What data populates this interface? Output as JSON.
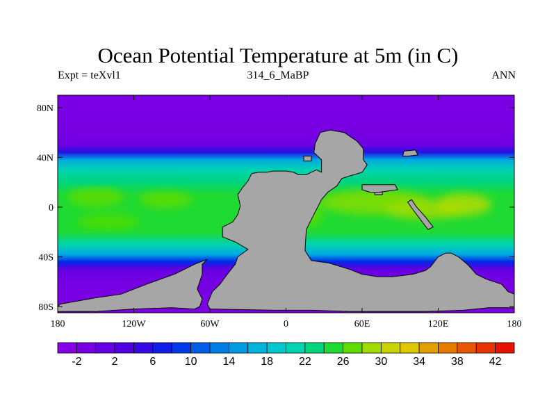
{
  "title": "Ocean Potential Temperature at 5m (in C)",
  "subtitle_left": "Expt = teXvl1",
  "subtitle_center": "314_6_MaBP",
  "subtitle_right": "ANN",
  "x_ticks": [
    {
      "lon": -180,
      "label": "180"
    },
    {
      "lon": -120,
      "label": "120W"
    },
    {
      "lon": -60,
      "label": "60W"
    },
    {
      "lon": 0,
      "label": "0"
    },
    {
      "lon": 60,
      "label": "60E"
    },
    {
      "lon": 120,
      "label": "120E"
    },
    {
      "lon": 180,
      "label": "180"
    }
  ],
  "y_ticks": [
    {
      "lat": 80,
      "label": "80N"
    },
    {
      "lat": 40,
      "label": "40N"
    },
    {
      "lat": 0,
      "label": "0"
    },
    {
      "lat": -40,
      "label": "40S"
    },
    {
      "lat": -80,
      "label": "80S"
    }
  ],
  "colorbar": {
    "min": -4,
    "max": 44,
    "step": 2,
    "labels": [
      "-2",
      "2",
      "6",
      "10",
      "14",
      "18",
      "22",
      "26",
      "30",
      "34",
      "38",
      "42"
    ],
    "label_values": [
      -2,
      2,
      6,
      10,
      14,
      18,
      22,
      26,
      30,
      34,
      38,
      42
    ]
  },
  "colors": {
    "land": "#a6a6a6",
    "coast": "#000000"
  },
  "land_regions": [
    {
      "name": "pangea-main",
      "lonlat": [
        [
          -30,
          21
        ],
        [
          -27,
          27
        ],
        [
          -22,
          28
        ],
        [
          -15,
          28
        ],
        [
          -10,
          29
        ],
        [
          0,
          29
        ],
        [
          6,
          28
        ],
        [
          10,
          26
        ],
        [
          16,
          26
        ],
        [
          24,
          30
        ],
        [
          28,
          28
        ],
        [
          28,
          38
        ],
        [
          22,
          44
        ],
        [
          23,
          51
        ],
        [
          27,
          60
        ],
        [
          35,
          62
        ],
        [
          46,
          60
        ],
        [
          56,
          53
        ],
        [
          61,
          47
        ],
        [
          61,
          38
        ],
        [
          64,
          34
        ],
        [
          60,
          28
        ],
        [
          50,
          25
        ],
        [
          44,
          23
        ],
        [
          40,
          17
        ],
        [
          33,
          12
        ],
        [
          28,
          6
        ],
        [
          22,
          -6
        ],
        [
          16,
          -18
        ],
        [
          15,
          -35
        ],
        [
          20,
          -43
        ],
        [
          34,
          -45
        ],
        [
          50,
          -50
        ],
        [
          60,
          -54
        ],
        [
          66,
          -55
        ],
        [
          72,
          -56
        ],
        [
          84,
          -56
        ],
        [
          100,
          -54
        ],
        [
          110,
          -51
        ],
        [
          114,
          -48
        ],
        [
          120,
          -40
        ],
        [
          126,
          -37
        ],
        [
          130,
          -37
        ],
        [
          136,
          -40
        ],
        [
          144,
          -47
        ],
        [
          150,
          -54
        ],
        [
          158,
          -58
        ],
        [
          170,
          -62
        ],
        [
          175,
          -68
        ],
        [
          180,
          -70
        ],
        [
          180,
          -81
        ],
        [
          160,
          -81
        ],
        [
          140,
          -83
        ],
        [
          110,
          -84
        ],
        [
          80,
          -84
        ],
        [
          50,
          -84
        ],
        [
          20,
          -83
        ],
        [
          -10,
          -83
        ],
        [
          -60,
          -82
        ],
        [
          -62,
          -78
        ],
        [
          -58,
          -68
        ],
        [
          -52,
          -62
        ],
        [
          -47,
          -55
        ],
        [
          -40,
          -46
        ],
        [
          -38,
          -40
        ],
        [
          -30,
          -34
        ],
        [
          -40,
          -28
        ],
        [
          -50,
          -24
        ],
        [
          -50,
          -16
        ],
        [
          -42,
          -12
        ],
        [
          -38,
          -6
        ],
        [
          -36,
          1
        ],
        [
          -38,
          10
        ],
        [
          -34,
          16
        ]
      ]
    },
    {
      "name": "antarctic-arm",
      "lonlat": [
        [
          -66,
          -46
        ],
        [
          -62,
          -42
        ],
        [
          -72,
          -46
        ],
        [
          -88,
          -54
        ],
        [
          -110,
          -62
        ],
        [
          -130,
          -70
        ],
        [
          -150,
          -73
        ],
        [
          -178,
          -78
        ],
        [
          -180,
          -80
        ],
        [
          -180,
          -84
        ],
        [
          -150,
          -84
        ],
        [
          -120,
          -82
        ],
        [
          -90,
          -81
        ],
        [
          -72,
          -82
        ],
        [
          -68,
          -80
        ],
        [
          -66,
          -74
        ],
        [
          -70,
          -66
        ],
        [
          -66,
          -54
        ]
      ]
    },
    {
      "name": "north-china",
      "lonlat": [
        [
          93,
          45
        ],
        [
          102,
          46
        ],
        [
          104,
          42
        ],
        [
          96,
          41
        ],
        [
          92,
          41
        ]
      ]
    },
    {
      "name": "east-terrane",
      "lonlat": [
        [
          96,
          4
        ],
        [
          100,
          -2
        ],
        [
          106,
          -10
        ],
        [
          112,
          -18
        ],
        [
          116,
          -16
        ],
        [
          110,
          -8
        ],
        [
          103,
          0
        ],
        [
          99,
          6
        ]
      ]
    },
    {
      "name": "tethys-island",
      "lonlat": [
        [
          70,
          14
        ],
        [
          76,
          14
        ],
        [
          76,
          10
        ],
        [
          70,
          10
        ]
      ]
    },
    {
      "name": "asia-block",
      "lonlat": [
        [
          60,
          18
        ],
        [
          86,
          18
        ],
        [
          88,
          14
        ],
        [
          74,
          12
        ],
        [
          66,
          12
        ],
        [
          60,
          14
        ]
      ]
    },
    {
      "name": "small-island",
      "lonlat": [
        [
          14,
          41
        ],
        [
          20,
          41
        ],
        [
          20,
          37
        ],
        [
          14,
          37
        ]
      ]
    }
  ]
}
